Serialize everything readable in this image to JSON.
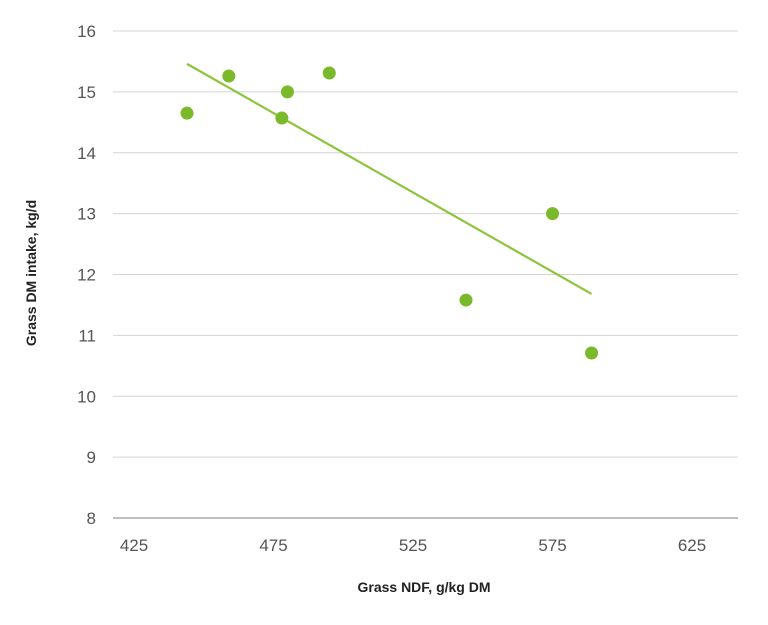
{
  "chart_data": {
    "type": "scatter",
    "title": "",
    "xlabel": "Grass NDF, g/kg DM",
    "ylabel": "Grass DM intake, kg/d",
    "xlim": [
      425,
      625
    ],
    "ylim": [
      8,
      16
    ],
    "xticks": [
      425,
      475,
      525,
      575,
      625
    ],
    "yticks": [
      8,
      9,
      10,
      11,
      12,
      13,
      14,
      15,
      16
    ],
    "grid": "horizontal",
    "points": [
      {
        "x": 444,
        "y": 14.65
      },
      {
        "x": 459,
        "y": 15.26
      },
      {
        "x": 478,
        "y": 14.57
      },
      {
        "x": 480,
        "y": 15.0
      },
      {
        "x": 495,
        "y": 15.31
      },
      {
        "x": 544,
        "y": 11.58
      },
      {
        "x": 575,
        "y": 13.0
      },
      {
        "x": 589,
        "y": 10.71
      }
    ],
    "trendline": {
      "x": [
        444,
        589
      ],
      "y": [
        15.46,
        11.68
      ]
    },
    "colors": {
      "points": "#7ab929",
      "trendline": "#8cc43c",
      "grid": "#d4d4d4",
      "axis": "#bfbfbf"
    }
  }
}
